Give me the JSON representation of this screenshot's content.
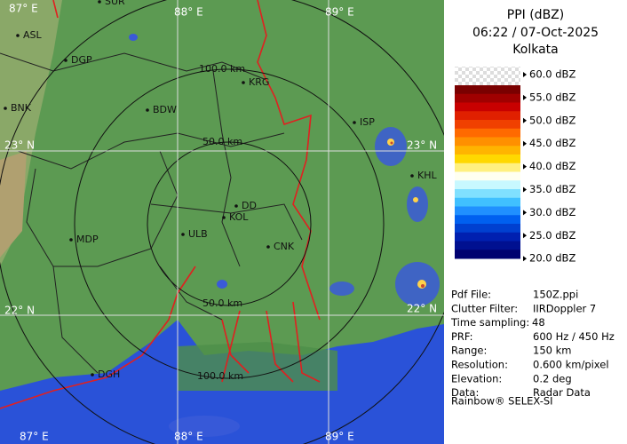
{
  "header": {
    "title": "PPI (dBZ)",
    "datetime": "06:22 / 07-Oct-2025",
    "station": "Kolkata"
  },
  "legend": [
    "60.0 dBZ",
    "55.0 dBZ",
    "50.0 dBZ",
    "45.0 dBZ",
    "40.0 dBZ",
    "35.0 dBZ",
    "30.0 dBZ",
    "25.0 dBZ",
    "20.0 dBZ"
  ],
  "info": [
    [
      "Pdf File:",
      "150Z.ppi"
    ],
    [
      "Clutter Filter:",
      "IIRDoppler 7"
    ],
    [
      "Time sampling:",
      "48"
    ],
    [
      "PRF:",
      "600 Hz / 450 Hz"
    ],
    [
      "Range:",
      "150 km"
    ],
    [
      "Resolution:",
      "0.600 km/pixel"
    ],
    [
      "Elevation:",
      "0.2 deg"
    ],
    [
      "Data:",
      "Radar Data"
    ]
  ],
  "footer": "Rainbow® SELEX-SI",
  "map": {
    "range_labels": [
      "100.0 km",
      "50.0 km",
      "50.0 km",
      "100.0 km"
    ],
    "grid_labels": [
      "87° E",
      "88° E",
      "89° E",
      "23° N",
      "23° N",
      "22° N",
      "22° N",
      "87° E",
      "88° E",
      "89° E"
    ],
    "places": [
      "SUR",
      "ASL",
      "DGP",
      "BNK",
      "BDW",
      "KRG",
      "ISP",
      "KHL",
      "DD",
      "KOL",
      "ULB",
      "MDP",
      "CNK",
      "DGH"
    ]
  }
}
